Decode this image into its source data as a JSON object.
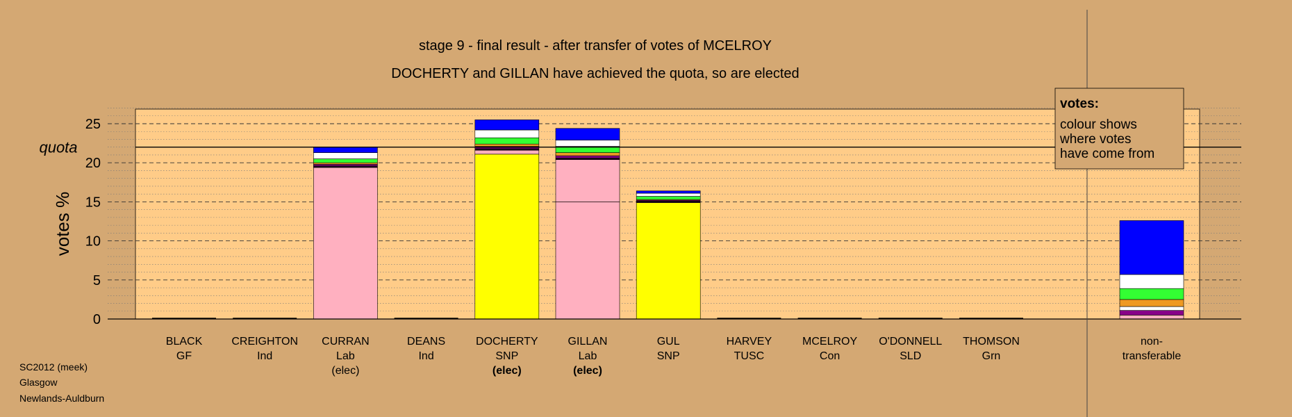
{
  "title_lines": [
    "stage 9 - final result - after transfer of votes of MCELROY",
    "DOCHERTY and GILLAN have achieved the quota, so are elected"
  ],
  "footer_lines": [
    "SC2012 (meek)",
    "Glasgow",
    "Newlands-Auldburn"
  ],
  "legend": {
    "title": "votes:",
    "lines": [
      "colour shows",
      "where votes",
      "have come from"
    ]
  },
  "colors": {
    "background": "#D4A873",
    "plot_area": "#FFCC88",
    "SNP": "#FFFF00",
    "Lab": "#FFB0C0",
    "Con": "#0000FF",
    "SLD": "#FFFFFF",
    "Grn": "#33FF33",
    "TUSC": "#EE9922",
    "Ind": "#880088",
    "GF": "#220022"
  },
  "chart_data": {
    "type": "bar",
    "stacked": true,
    "ylabel": "votes %",
    "ylim": [
      0,
      27
    ],
    "yticks": [
      0,
      5,
      10,
      15,
      20,
      25
    ],
    "quota": 22,
    "quota_label": "quota",
    "grid": true,
    "legend_position": "top-right",
    "candidates": [
      {
        "name": "BLACK",
        "party": "GF",
        "note": "",
        "segments": []
      },
      {
        "name": "CREIGHTON",
        "party": "Ind",
        "note": "",
        "segments": []
      },
      {
        "name": "CURRAN",
        "party": "Lab",
        "note": "(elec)",
        "segments": [
          {
            "from": "Lab",
            "value": 19.4
          },
          {
            "from": "GF",
            "value": 0.2
          },
          {
            "from": "Ind",
            "value": 0.2
          },
          {
            "from": "TUSC",
            "value": 0.2
          },
          {
            "from": "Grn",
            "value": 0.5
          },
          {
            "from": "SLD",
            "value": 0.8
          },
          {
            "from": "Con",
            "value": 0.7
          }
        ]
      },
      {
        "name": "DEANS",
        "party": "Ind",
        "note": "",
        "segments": []
      },
      {
        "name": "DOCHERTY",
        "party": "SNP",
        "note": "(elec)",
        "segments": [
          {
            "from": "SNP",
            "value": 21.1
          },
          {
            "from": "Lab",
            "value": 0.5
          },
          {
            "from": "GF",
            "value": 0.2
          },
          {
            "from": "Ind",
            "value": 0.3
          },
          {
            "from": "TUSC",
            "value": 0.3
          },
          {
            "from": "Grn",
            "value": 0.8
          },
          {
            "from": "SLD",
            "value": 1.0
          },
          {
            "from": "Con",
            "value": 1.3
          }
        ]
      },
      {
        "name": "GILLAN",
        "party": "Lab",
        "note": "(elec)",
        "segments": [
          {
            "from": "Lab",
            "value": 15.0,
            "divider": true
          },
          {
            "from": "Lab",
            "value": 5.4
          },
          {
            "from": "GF",
            "value": 0.2
          },
          {
            "from": "Ind",
            "value": 0.3
          },
          {
            "from": "TUSC",
            "value": 0.4
          },
          {
            "from": "Grn",
            "value": 0.8
          },
          {
            "from": "SLD",
            "value": 0.8
          },
          {
            "from": "Con",
            "value": 1.5
          }
        ]
      },
      {
        "name": "GUL",
        "party": "SNP",
        "note": "",
        "segments": [
          {
            "from": "SNP",
            "value": 14.9
          },
          {
            "from": "GF",
            "value": 0.2
          },
          {
            "from": "Ind",
            "value": 0.1
          },
          {
            "from": "TUSC",
            "value": 0.1
          },
          {
            "from": "Grn",
            "value": 0.4
          },
          {
            "from": "SLD",
            "value": 0.4
          },
          {
            "from": "Con",
            "value": 0.3
          }
        ]
      },
      {
        "name": "HARVEY",
        "party": "TUSC",
        "note": "",
        "segments": []
      },
      {
        "name": "MCELROY",
        "party": "Con",
        "note": "",
        "segments": []
      },
      {
        "name": "O'DONNELL",
        "party": "SLD",
        "note": "",
        "segments": []
      },
      {
        "name": "THOMSON",
        "party": "Grn",
        "note": "",
        "segments": []
      }
    ],
    "nontransferable": {
      "label_lines": [
        "non-",
        "transferable"
      ],
      "segments": [
        {
          "from": "Lab",
          "value": 0.5
        },
        {
          "from": "Ind",
          "value": 0.6
        },
        {
          "from": "SLD",
          "value": 0.5
        },
        {
          "from": "TUSC",
          "value": 0.9
        },
        {
          "from": "Grn",
          "value": 1.4
        },
        {
          "from": "SLD",
          "value": 1.8
        },
        {
          "from": "Con",
          "value": 6.9
        }
      ]
    }
  }
}
